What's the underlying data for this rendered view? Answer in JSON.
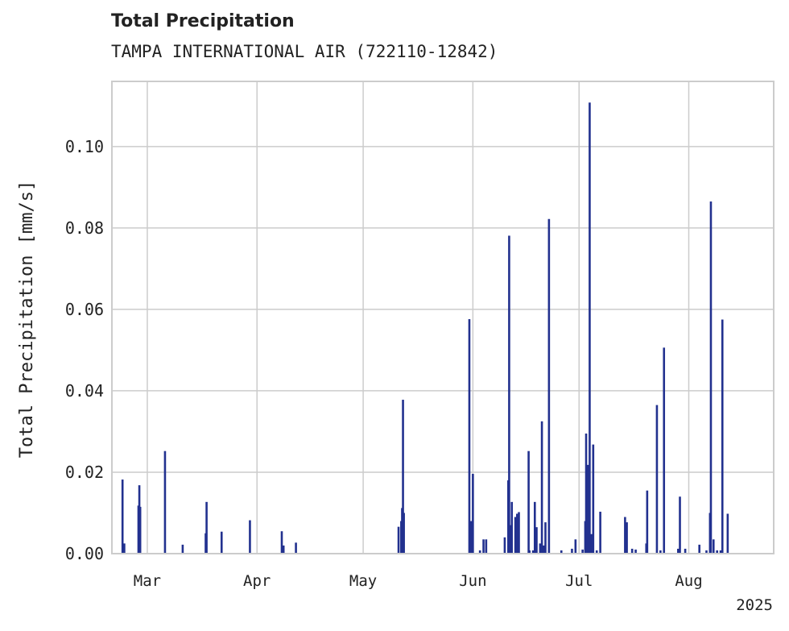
{
  "title": "Total Precipitation",
  "subtitle": "TAMPA INTERNATIONAL AIR (722110-12842)",
  "colors": {
    "bar": "#22318f",
    "grid": "#cccccc",
    "frame": "#cccccc",
    "text": "#222222"
  },
  "chart_data": {
    "type": "bar",
    "ylabel": "Total Precipitation [mm/s]",
    "xlabel": "",
    "ylim": [
      0,
      0.116
    ],
    "xlim": [
      "2025-02-19",
      "2025-08-25"
    ],
    "grid": true,
    "y_ticks": [
      {
        "value": 0.0,
        "label": "0.00"
      },
      {
        "value": 0.02,
        "label": "0.02"
      },
      {
        "value": 0.04,
        "label": "0.04"
      },
      {
        "value": 0.06,
        "label": "0.06"
      },
      {
        "value": 0.08,
        "label": "0.08"
      },
      {
        "value": 0.1,
        "label": "0.10"
      }
    ],
    "x_ticks": [
      {
        "value": "2025-03-01",
        "label": "Mar"
      },
      {
        "value": "2025-04-01",
        "label": "Apr"
      },
      {
        "value": "2025-05-01",
        "label": "May"
      },
      {
        "value": "2025-06-01",
        "label": "Jun"
      },
      {
        "value": "2025-07-01",
        "label": "Jul"
      },
      {
        "value": "2025-08-01",
        "label": "Aug"
      }
    ],
    "x_offset_label": "2025",
    "points": [
      {
        "x": "2025-02-22",
        "y": 0.0182
      },
      {
        "x": "2025-02-22T12:00",
        "y": 0.0025
      },
      {
        "x": "2025-02-26T12:00",
        "y": 0.0118
      },
      {
        "x": "2025-02-26T18:00",
        "y": 0.0168
      },
      {
        "x": "2025-02-27",
        "y": 0.0115
      },
      {
        "x": "2025-03-06",
        "y": 0.0252
      },
      {
        "x": "2025-03-11",
        "y": 0.0022
      },
      {
        "x": "2025-03-17T12:00",
        "y": 0.005
      },
      {
        "x": "2025-03-17T18:00",
        "y": 0.0127
      },
      {
        "x": "2025-03-22",
        "y": 0.0054
      },
      {
        "x": "2025-03-30",
        "y": 0.0082
      },
      {
        "x": "2025-04-08",
        "y": 0.0055
      },
      {
        "x": "2025-04-08T12:00",
        "y": 0.002
      },
      {
        "x": "2025-04-12",
        "y": 0.0027
      },
      {
        "x": "2025-05-11",
        "y": 0.0066
      },
      {
        "x": "2025-05-11T18:00",
        "y": 0.008
      },
      {
        "x": "2025-05-12",
        "y": 0.0112
      },
      {
        "x": "2025-05-12T06:00",
        "y": 0.0378
      },
      {
        "x": "2025-05-12T12:00",
        "y": 0.01
      },
      {
        "x": "2025-05-31",
        "y": 0.0576
      },
      {
        "x": "2025-05-31T12:00",
        "y": 0.008
      },
      {
        "x": "2025-06-01",
        "y": 0.0196
      },
      {
        "x": "2025-06-03",
        "y": 0.0008
      },
      {
        "x": "2025-06-04",
        "y": 0.0035
      },
      {
        "x": "2025-06-04T18:00",
        "y": 0.0035
      },
      {
        "x": "2025-06-10",
        "y": 0.004
      },
      {
        "x": "2025-06-11",
        "y": 0.018
      },
      {
        "x": "2025-06-11T06:00",
        "y": 0.0781
      },
      {
        "x": "2025-06-11T12:00",
        "y": 0.007
      },
      {
        "x": "2025-06-12",
        "y": 0.0127
      },
      {
        "x": "2025-06-13",
        "y": 0.009
      },
      {
        "x": "2025-06-13T12:00",
        "y": 0.0098
      },
      {
        "x": "2025-06-14",
        "y": 0.0102
      },
      {
        "x": "2025-06-16T18:00",
        "y": 0.0252
      },
      {
        "x": "2025-06-17",
        "y": 0.0008
      },
      {
        "x": "2025-06-18",
        "y": 0.0008
      },
      {
        "x": "2025-06-18T12:00",
        "y": 0.0127
      },
      {
        "x": "2025-06-19",
        "y": 0.0065
      },
      {
        "x": "2025-06-20",
        "y": 0.0025
      },
      {
        "x": "2025-06-20T12:00",
        "y": 0.0325
      },
      {
        "x": "2025-06-21",
        "y": 0.002
      },
      {
        "x": "2025-06-21T12:00",
        "y": 0.0077
      },
      {
        "x": "2025-06-22T12:00",
        "y": 0.0822
      },
      {
        "x": "2025-06-26",
        "y": 0.0008
      },
      {
        "x": "2025-06-29",
        "y": 0.0012
      },
      {
        "x": "2025-06-30",
        "y": 0.0035
      },
      {
        "x": "2025-07-02",
        "y": 0.001
      },
      {
        "x": "2025-07-02T18:00",
        "y": 0.008
      },
      {
        "x": "2025-07-03",
        "y": 0.0295
      },
      {
        "x": "2025-07-03T12:00",
        "y": 0.0218
      },
      {
        "x": "2025-07-04",
        "y": 0.1108
      },
      {
        "x": "2025-07-04T12:00",
        "y": 0.0048
      },
      {
        "x": "2025-07-05",
        "y": 0.0268
      },
      {
        "x": "2025-07-06",
        "y": 0.0008
      },
      {
        "x": "2025-07-07",
        "y": 0.0103
      },
      {
        "x": "2025-07-14",
        "y": 0.009
      },
      {
        "x": "2025-07-14T12:00",
        "y": 0.0077
      },
      {
        "x": "2025-07-16",
        "y": 0.0012
      },
      {
        "x": "2025-07-17",
        "y": 0.001
      },
      {
        "x": "2025-07-20",
        "y": 0.0025
      },
      {
        "x": "2025-07-20T06:00",
        "y": 0.0155
      },
      {
        "x": "2025-07-23",
        "y": 0.0365
      },
      {
        "x": "2025-07-24",
        "y": 0.0008
      },
      {
        "x": "2025-07-25",
        "y": 0.0506
      },
      {
        "x": "2025-07-29",
        "y": 0.0012
      },
      {
        "x": "2025-07-29T12:00",
        "y": 0.014
      },
      {
        "x": "2025-07-31",
        "y": 0.0012
      },
      {
        "x": "2025-08-04",
        "y": 0.0022
      },
      {
        "x": "2025-08-06",
        "y": 0.0008
      },
      {
        "x": "2025-08-07",
        "y": 0.01
      },
      {
        "x": "2025-08-07T06:00",
        "y": 0.0865
      },
      {
        "x": "2025-08-08",
        "y": 0.0035
      },
      {
        "x": "2025-08-09",
        "y": 0.0008
      },
      {
        "x": "2025-08-10",
        "y": 0.0008
      },
      {
        "x": "2025-08-10T12:00",
        "y": 0.0575
      },
      {
        "x": "2025-08-12",
        "y": 0.0098
      }
    ]
  }
}
